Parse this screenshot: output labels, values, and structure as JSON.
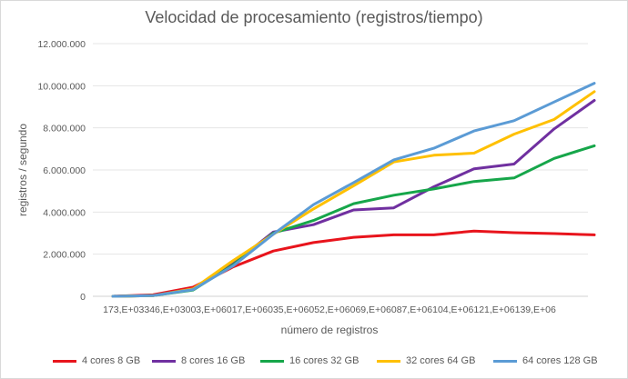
{
  "chart_data": {
    "type": "line",
    "title": "Velocidad de procesamiento (registros/tiempo)",
    "xlabel": "número de registros",
    "ylabel": "registros / segundo",
    "ylim": [
      0,
      12000000
    ],
    "yticks": [
      "0",
      "2.000.000",
      "4.000.000",
      "6.000.000",
      "8.000.000",
      "10.000.000",
      "12.000.000"
    ],
    "yticks_values": [
      0,
      2000000,
      4000000,
      6000000,
      8000000,
      10000000,
      12000000
    ],
    "x_tick_text": "173,E+03346,E+03003,E+06017,E+06035,E+06052,E+06069,E+06087,E+06104,E+06121,E+06139,E+06",
    "grid": true,
    "legend_position": "bottom",
    "series": [
      {
        "name": "4 cores 8 GB",
        "color": "#e8141c",
        "values": [
          0,
          70000,
          430000,
          1400000,
          2150000,
          2550000,
          2800000,
          2920000,
          2920000,
          3100000,
          3020000,
          2980000,
          2920000
        ]
      },
      {
        "name": "8 cores 16 GB",
        "color": "#7030a0",
        "values": [
          0,
          40000,
          350000,
          1550000,
          3050000,
          3400000,
          4100000,
          4200000,
          5200000,
          6050000,
          6280000,
          7950000,
          9300000
        ]
      },
      {
        "name": "16 cores 32 GB",
        "color": "#16a64a",
        "values": [
          0,
          30000,
          300000,
          1500000,
          3000000,
          3600000,
          4400000,
          4800000,
          5100000,
          5450000,
          5620000,
          6550000,
          7150000
        ]
      },
      {
        "name": "32 cores 64 GB",
        "color": "#ffc000",
        "values": [
          0,
          30000,
          350000,
          1700000,
          2950000,
          4150000,
          5250000,
          6380000,
          6700000,
          6800000,
          7700000,
          8400000,
          9720000
        ]
      },
      {
        "name": "64 cores 128 GB",
        "color": "#5b9bd5",
        "values": [
          0,
          30000,
          320000,
          1450000,
          2950000,
          4350000,
          5400000,
          6480000,
          7030000,
          7850000,
          8340000,
          9230000,
          10120000
        ]
      }
    ]
  }
}
